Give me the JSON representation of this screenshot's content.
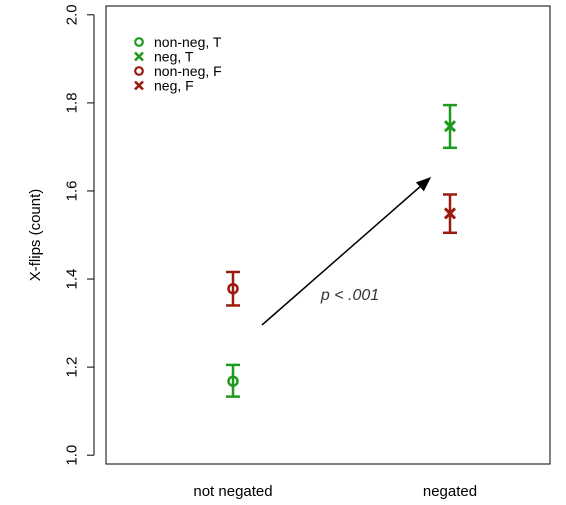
{
  "chart_data": {
    "type": "scatter",
    "categories": [
      "not negated",
      "negated"
    ],
    "ylabel": "X-flips (count)",
    "xlabel": "",
    "ylim": [
      0.98,
      2.02
    ],
    "yticks": [
      1.0,
      1.2,
      1.4,
      1.6,
      1.8,
      2.0
    ],
    "ytick_labels": [
      "1.0",
      "1.2",
      "1.4",
      "1.6",
      "1.8",
      "2.0"
    ],
    "grid": false,
    "legend_position": "top-left",
    "series": [
      {
        "name": "non-neg, T",
        "marker": "circle",
        "color": "#1e9a1e",
        "category": "not negated",
        "value": 1.168,
        "error_low": 1.133,
        "error_high": 1.205
      },
      {
        "name": "neg, T",
        "marker": "x",
        "color": "#1e9a1e",
        "category": "negated",
        "value": 1.747,
        "error_low": 1.698,
        "error_high": 1.795
      },
      {
        "name": "non-neg, F",
        "marker": "circle",
        "color": "#9a1a0e",
        "category": "not negated",
        "value": 1.378,
        "error_low": 1.34,
        "error_high": 1.416
      },
      {
        "name": "neg, F",
        "marker": "x",
        "color": "#9a1a0e",
        "category": "negated",
        "value": 1.549,
        "error_low": 1.505,
        "error_high": 1.592
      }
    ],
    "annotations": [
      {
        "text": "p < .001",
        "type": "arrow-label"
      }
    ]
  }
}
